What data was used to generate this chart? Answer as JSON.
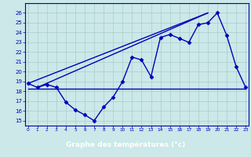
{
  "xlabel": "Graphe des températures (°c)",
  "hours": [
    0,
    1,
    2,
    3,
    4,
    5,
    6,
    7,
    8,
    9,
    10,
    11,
    12,
    13,
    14,
    15,
    16,
    17,
    18,
    19,
    20,
    21,
    22,
    23
  ],
  "temp_line": [
    18.8,
    18.4,
    18.7,
    18.4,
    16.9,
    16.1,
    15.6,
    15.0,
    16.4,
    17.4,
    19.0,
    21.5,
    21.2,
    19.5,
    23.5,
    23.8,
    23.4,
    23.0,
    24.8,
    25.0,
    26.0,
    23.7,
    20.5,
    18.4
  ],
  "flat_line_value": 18.3,
  "flat_line_x": [
    0,
    23
  ],
  "trend_line1_y": [
    18.8,
    26.0
  ],
  "trend_line1_x": [
    0,
    19
  ],
  "trend_line2_y": [
    18.4,
    26.0
  ],
  "trend_line2_x": [
    1,
    19
  ],
  "ylim": [
    14.5,
    27.0
  ],
  "xlim": [
    -0.3,
    23.3
  ],
  "yticks": [
    15,
    16,
    17,
    18,
    19,
    20,
    21,
    22,
    23,
    24,
    25,
    26
  ],
  "xticks": [
    0,
    1,
    2,
    3,
    4,
    5,
    6,
    7,
    8,
    9,
    10,
    11,
    12,
    13,
    14,
    15,
    16,
    17,
    18,
    19,
    20,
    21,
    22,
    23
  ],
  "bg_color": "#cce8e8",
  "grid_color": "#aacccc",
  "line_color": "#0000bb",
  "footer_color": "#0000cc",
  "footer_text_color": "#ffffff",
  "marker": "D",
  "marker_size": 2.5,
  "linewidth": 1.0
}
